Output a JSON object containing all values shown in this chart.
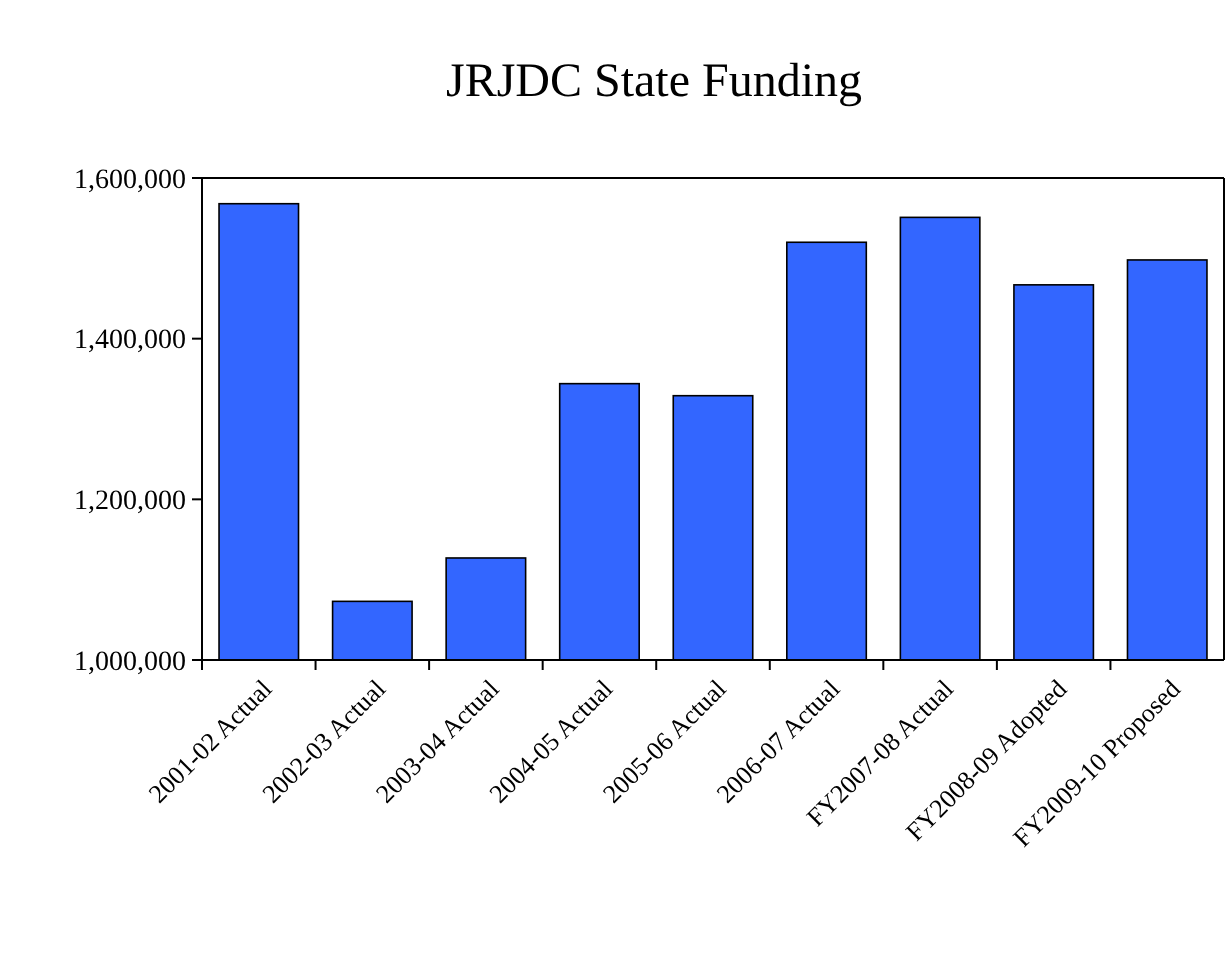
{
  "chart_data": {
    "type": "bar",
    "title": "JRJDC State Funding",
    "categories": [
      "2001-02 Actual",
      "2002-03 Actual",
      "2003-04 Actual",
      "2004-05 Actual",
      "2005-06 Actual",
      "2006-07 Actual",
      "FY2007-08 Actual",
      "FY2008-09 Adopted",
      "FY2009-10 Proposed"
    ],
    "values": [
      1568000,
      1073000,
      1127000,
      1344000,
      1329000,
      1520000,
      1551000,
      1467000,
      1498000
    ],
    "color": "#3366ff",
    "ylim": [
      1000000,
      1600000
    ],
    "yticks": [
      {
        "value": 1000000,
        "label": "1,000,000"
      },
      {
        "value": 1200000,
        "label": "1,200,000"
      },
      {
        "value": 1400000,
        "label": "1,400,000"
      },
      {
        "value": 1600000,
        "label": "1,600,000"
      }
    ],
    "grid": false
  }
}
